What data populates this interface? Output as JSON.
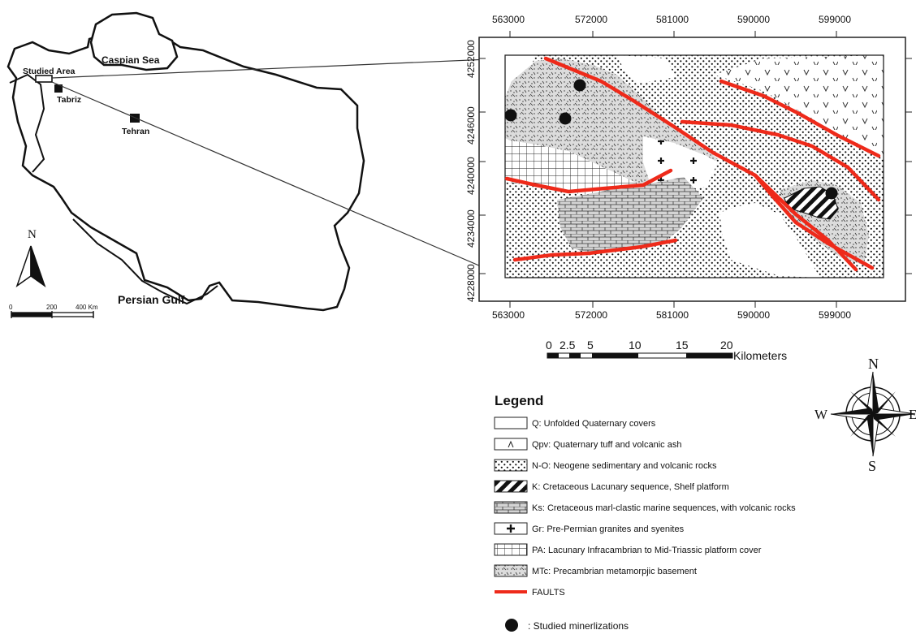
{
  "iran_map": {
    "caspian_label": "Caspian Sea",
    "studied_area_label": "Studied Area",
    "tabriz_label": "Tabriz",
    "tehran_label": "Tehran",
    "persian_gulf_label": "Persian Gulf",
    "north_label": "N",
    "scale_labels": [
      "0",
      "200",
      "400 Km"
    ]
  },
  "geologic_map": {
    "x_ticks": [
      "563000",
      "572000",
      "581000",
      "590000",
      "599000"
    ],
    "y_ticks": [
      "4252000",
      "4246000",
      "4240000",
      "4234000",
      "4228000"
    ],
    "scalebar_labels": [
      "0",
      "2.5",
      "5",
      "10",
      "15",
      "20"
    ],
    "scalebar_unit": "Kilometers",
    "mineralization_count": 5
  },
  "compass": {
    "n": "N",
    "s": "S",
    "w": "W",
    "e": "E"
  },
  "legend": {
    "title": "Legend",
    "items": [
      {
        "id": "Q",
        "label": "Q: Unfolded Quaternary covers"
      },
      {
        "id": "Qpv",
        "label": "Qpv: Quaternary tuff and volcanic ash"
      },
      {
        "id": "N-O",
        "label": "N-O: Neogene sedimentary and volcanic rocks"
      },
      {
        "id": "K",
        "label": "K: Cretaceous Lacunary sequence, Shelf platform"
      },
      {
        "id": "Ks",
        "label": "Ks: Cretaceous marl-clastic marine sequences, with volcanic rocks"
      },
      {
        "id": "Gr",
        "label": "Gr: Pre-Permian granites and syenites"
      },
      {
        "id": "PA",
        "label": "PA: Lacunary Infracambrian to Mid-Triassic platform cover"
      },
      {
        "id": "MTc",
        "label": "MTc: Precambrian metamorpjic basement"
      },
      {
        "id": "faults",
        "label": "FAULTS"
      }
    ],
    "mineralization_label": ": Studied minerlizations"
  },
  "colors": {
    "fault": "#ee2a1a",
    "ink": "#111111"
  }
}
